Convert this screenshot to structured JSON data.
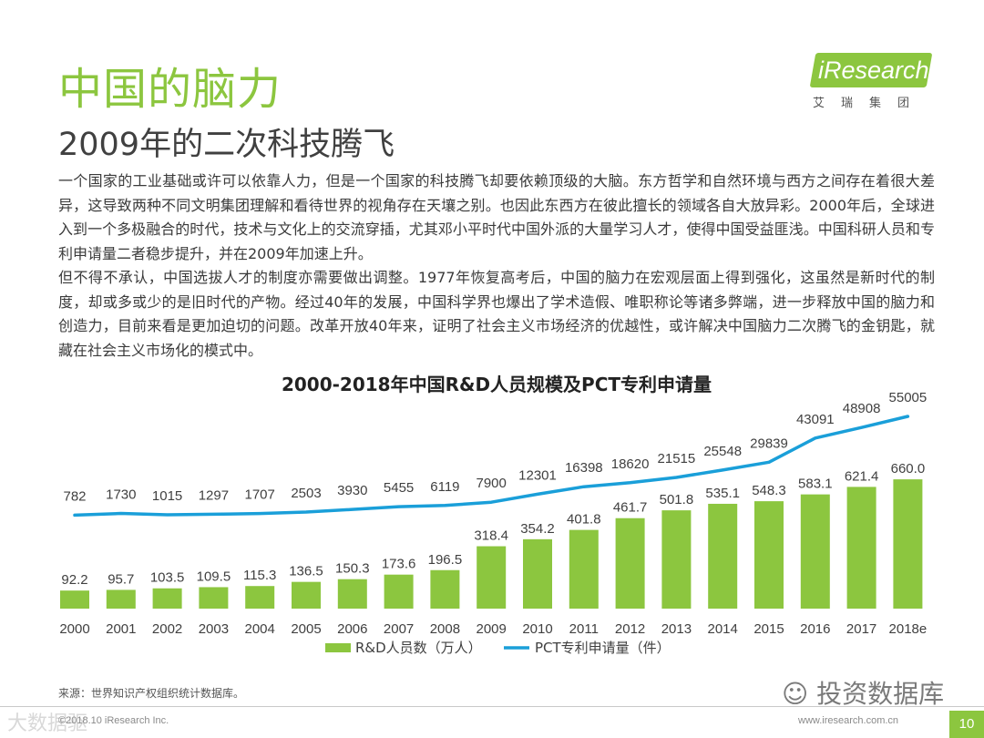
{
  "header": {
    "title": "中国的脑力",
    "subtitle": "2009年的二次科技腾飞"
  },
  "logo": {
    "name": "iResearch",
    "tagline": "艾瑞集团"
  },
  "body": {
    "paragraph1": "一个国家的工业基础或许可以依靠人力，但是一个国家的科技腾飞却要依赖顶级的大脑。东方哲学和自然环境与西方之间存在着很大差异，这导致两种不同文明集团理解和看待世界的视角存在天壤之别。也因此东西方在彼此擅长的领域各自大放异彩。2000年后，全球进入到一个多极融合的时代，技术与文化上的交流穿插，尤其邓小平时代中国外派的大量学习人才，使得中国受益匪浅。中国科研人员和专利申请量二者稳步提升，并在2009年加速上升。",
    "paragraph2": "但不得不承认，中国选拔人才的制度亦需要做出调整。1977年恢复高考后，中国的脑力在宏观层面上得到强化，这虽然是新时代的制度，却或多或少的是旧时代的产物。经过40年的发展，中国科学界也爆出了学术造假、唯职称论等诸多弊端，进一步释放中国的脑力和创造力，目前来看是更加迫切的问题。改革开放40年来，证明了社会主义市场经济的优越性，或许解决中国脑力二次腾飞的金钥匙，就藏在社会主义市场化的模式中。"
  },
  "chart_data": {
    "type": "bar",
    "title": "2000-2018年中国R&D人员规模及PCT专利申请量",
    "categories": [
      "2000",
      "2001",
      "2002",
      "2003",
      "2004",
      "2005",
      "2006",
      "2007",
      "2008",
      "2009",
      "2010",
      "2011",
      "2012",
      "2013",
      "2014",
      "2015",
      "2016",
      "2017",
      "2018e"
    ],
    "series": [
      {
        "name": "R&D人员数（万人）",
        "type": "bar",
        "color": "#8cc63f",
        "values": [
          92.2,
          95.7,
          103.5,
          109.5,
          115.3,
          136.5,
          150.3,
          173.6,
          196.5,
          318.4,
          354.2,
          401.8,
          461.7,
          501.8,
          535.1,
          548.3,
          583.1,
          621.4,
          660.0
        ],
        "labels": [
          "92.2",
          "95.7",
          "103.5",
          "109.5",
          "115.3",
          "136.5",
          "150.3",
          "173.6",
          "196.5",
          "318.4",
          "354.2",
          "401.8",
          "461.7",
          "501.8",
          "535.1",
          "548.3",
          "583.1",
          "621.4",
          "660.0"
        ]
      },
      {
        "name": "PCT专利申请量（件）",
        "type": "line",
        "color": "#1a9fd9",
        "values": [
          782,
          1730,
          1015,
          1297,
          1707,
          2503,
          3930,
          5455,
          6119,
          7900,
          12301,
          16398,
          18620,
          21515,
          25548,
          29839,
          43091,
          48908,
          55005
        ],
        "labels": [
          "782",
          "1730",
          "1015",
          "1297",
          "1707",
          "2503",
          "3930",
          "5455",
          "6119",
          "7900",
          "12301",
          "16398",
          "18620",
          "21515",
          "25548",
          "29839",
          "43091",
          "48908",
          "55005"
        ]
      }
    ],
    "legend_position": "bottom"
  },
  "footer": {
    "source": "来源：世界知识产权组织统计数据库。",
    "copyright": "©2018.10 iResearch Inc.",
    "website": "www.iresearch.com.cn",
    "page": "10"
  },
  "watermarks": {
    "left": "大数据驱",
    "right": "投资数据库"
  }
}
